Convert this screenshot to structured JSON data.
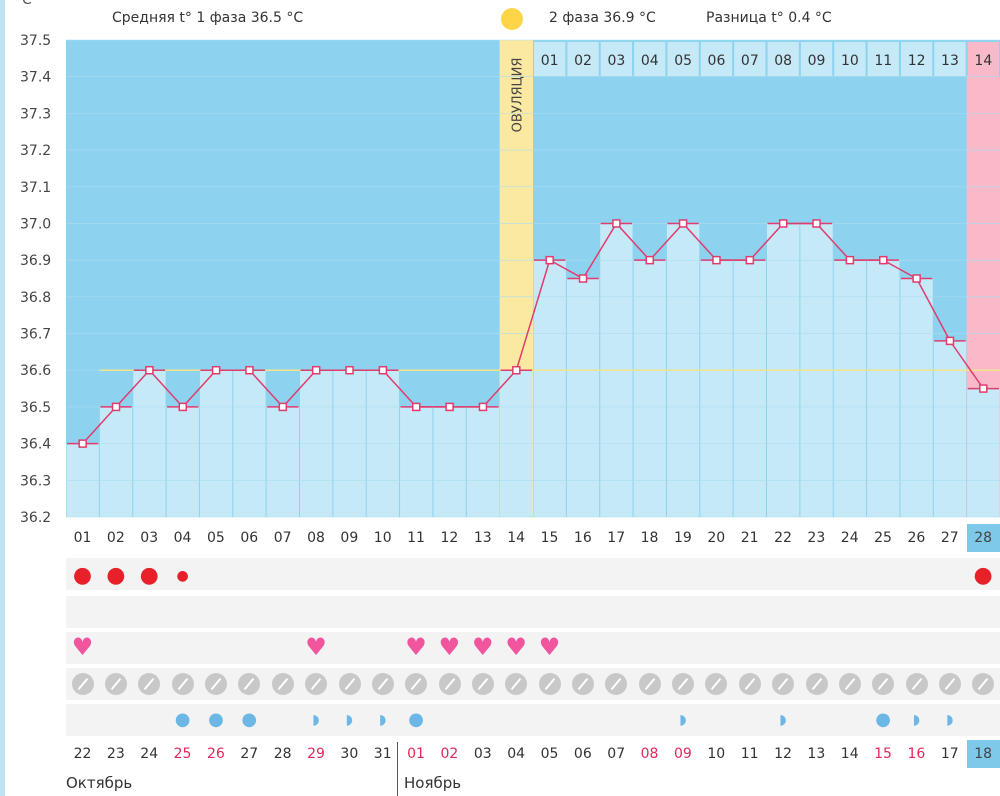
{
  "header": {
    "phase1_label": "Средняя t° 1 фаза 36.5 °C",
    "phase2_label": "2 фаза 36.9 °C",
    "diff_label": "Разница t° 0.4 °C",
    "y_unit": "C°"
  },
  "ovulation_label": "ОВУЛЯЦИЯ",
  "months": [
    "Октябрь",
    "Ноябрь"
  ],
  "colors": {
    "chart_bg": "#8dd3ef",
    "bar": "#c6e9f8",
    "line": "#e03c6e",
    "marker": "#e03c6e",
    "coverline": "#f1e48a",
    "ovulation": "#fbe9a2",
    "menstruation_highlight": "#f9b9c9",
    "selected_day": "#7ec8ea"
  },
  "post_ovulation_days": [
    "01",
    "02",
    "03",
    "04",
    "05",
    "06",
    "07",
    "08",
    "09",
    "10",
    "11",
    "12",
    "13",
    "14"
  ],
  "chart_data": {
    "type": "line",
    "cycle_days": [
      "01",
      "02",
      "03",
      "04",
      "05",
      "06",
      "07",
      "08",
      "09",
      "10",
      "11",
      "12",
      "13",
      "14",
      "15",
      "16",
      "17",
      "18",
      "19",
      "20",
      "21",
      "22",
      "23",
      "24",
      "25",
      "26",
      "27",
      "28"
    ],
    "dates": [
      "22",
      "23",
      "24",
      "25",
      "26",
      "27",
      "28",
      "29",
      "30",
      "31",
      "01",
      "02",
      "03",
      "04",
      "05",
      "06",
      "07",
      "08",
      "09",
      "10",
      "11",
      "12",
      "13",
      "14",
      "15",
      "16",
      "17",
      "18"
    ],
    "date_red": [
      false,
      false,
      false,
      true,
      true,
      false,
      false,
      true,
      false,
      false,
      true,
      true,
      false,
      false,
      false,
      false,
      false,
      true,
      true,
      false,
      false,
      false,
      false,
      false,
      true,
      true,
      false,
      false
    ],
    "series": [
      {
        "values": [
          36.4,
          36.5,
          36.6,
          36.5,
          36.6,
          36.6,
          36.5,
          36.6,
          36.6,
          36.6,
          36.5,
          36.5,
          36.5,
          36.6,
          36.9,
          36.85,
          37.0,
          36.9,
          37.0,
          36.9,
          36.9,
          37.0,
          37.0,
          36.9,
          36.9,
          36.85,
          36.68,
          36.55
        ]
      }
    ],
    "coverline": 36.6,
    "ylim": [
      36.2,
      37.5
    ],
    "yticks": [
      "36.2",
      "36.3",
      "36.4",
      "36.5",
      "36.6",
      "36.7",
      "36.8",
      "36.9",
      "37.0",
      "37.1",
      "37.2",
      "37.3",
      "37.4",
      "37.5"
    ],
    "ovulation_day": 14,
    "selected_day": 28,
    "markers": {
      "menstruation": [
        "big",
        "big",
        "big",
        "small",
        "",
        "",
        "",
        "",
        "",
        "",
        "",
        "",
        "",
        "",
        "",
        "",
        "",
        "",
        "",
        "",
        "",
        "",
        "",
        "",
        "",
        "",
        "",
        "big"
      ],
      "intercourse": [
        true,
        false,
        false,
        false,
        false,
        false,
        false,
        true,
        false,
        false,
        true,
        true,
        true,
        true,
        true,
        false,
        false,
        false,
        false,
        false,
        false,
        false,
        false,
        false,
        false,
        false,
        false,
        false
      ],
      "discharge": [
        "",
        "",
        "",
        "full",
        "full",
        "full",
        "",
        "hook",
        "hook",
        "hook",
        "full",
        "",
        "",
        "",
        "",
        "",
        "",
        "",
        "hook",
        "",
        "",
        "hook",
        "",
        "",
        "full",
        "hook",
        "hook",
        ""
      ]
    }
  }
}
